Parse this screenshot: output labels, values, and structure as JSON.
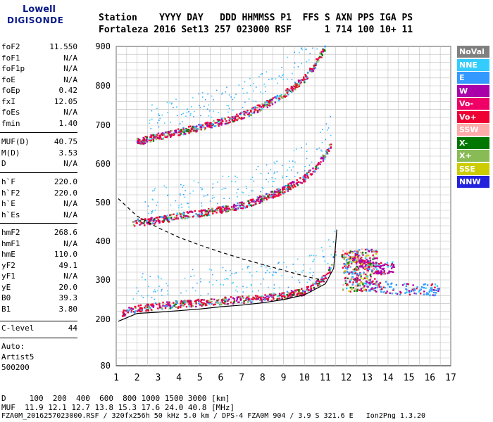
{
  "logo": {
    "line1": "Lowell",
    "line2": "DIGISONDE"
  },
  "header": {
    "row1": "Station    YYYY DAY   DDD HHMMSS P1  FFS S AXN PPS IGA PS",
    "row2": "Fortaleza 2016 Set13 257 023000 RSF      1 714 100 10+ 11"
  },
  "params_group1": [
    {
      "name": "foF2",
      "value": "11.550"
    },
    {
      "name": "foF1",
      "value": "N/A"
    },
    {
      "name": "foF1p",
      "value": "N/A"
    },
    {
      "name": "foE",
      "value": "N/A"
    },
    {
      "name": "foEp",
      "value": "0.42"
    },
    {
      "name": "fxI",
      "value": "12.05"
    },
    {
      "name": "foEs",
      "value": "N/A"
    },
    {
      "name": "fmin",
      "value": "1.40"
    }
  ],
  "params_group2": [
    {
      "name": "MUF(D)",
      "value": "40.75"
    },
    {
      "name": "M(D)",
      "value": "3.53"
    },
    {
      "name": "D",
      "value": "N/A"
    }
  ],
  "params_group3": [
    {
      "name": "h`F",
      "value": "220.0"
    },
    {
      "name": "h`F2",
      "value": "220.0"
    },
    {
      "name": "h`E",
      "value": "N/A"
    },
    {
      "name": "h`Es",
      "value": "N/A"
    }
  ],
  "params_group4": [
    {
      "name": "hmF2",
      "value": "268.6"
    },
    {
      "name": "hmF1",
      "value": "N/A"
    },
    {
      "name": "hmE",
      "value": "110.0"
    },
    {
      "name": "yF2",
      "value": "49.1"
    },
    {
      "name": "yF1",
      "value": "N/A"
    },
    {
      "name": "yE",
      "value": "20.0"
    },
    {
      "name": "B0",
      "value": "39.3"
    },
    {
      "name": "B1",
      "value": "3.80"
    }
  ],
  "clevel": {
    "name": "C-level",
    "value": "44"
  },
  "auto": {
    "line1": "Auto:",
    "line2": "Artist5",
    "line3": "500200"
  },
  "legend": [
    {
      "label": "NoVal",
      "color": "#808080"
    },
    {
      "label": "NNE",
      "color": "#33ccff"
    },
    {
      "label": "E",
      "color": "#3399ff"
    },
    {
      "label": "W",
      "color": "#aa00aa"
    },
    {
      "label": "Vo-",
      "color": "#ee0066"
    },
    {
      "label": "Vo+",
      "color": "#ee0033"
    },
    {
      "label": "SSW",
      "color": "#ffaaaa"
    },
    {
      "label": "X-",
      "color": "#007700"
    },
    {
      "label": "X+",
      "color": "#88bb55"
    },
    {
      "label": "SSE",
      "color": "#cccc00"
    },
    {
      "label": "NNW",
      "color": "#2222dd"
    }
  ],
  "axes": {
    "y_ticks": [
      "900",
      "800",
      "700",
      "600",
      "500",
      "400",
      "300",
      "200",
      "80"
    ],
    "x_ticks": [
      "1",
      "2",
      "3",
      "4",
      "5",
      "6",
      "7",
      "8",
      "9",
      "10",
      "11",
      "12",
      "13",
      "14",
      "15",
      "16",
      "17"
    ]
  },
  "footer": {
    "row1": "D     100  200  400  600  800 1000 1500 3000 [km]",
    "row2": "MUF  11.9 12.1 12.7 13.8 15.3 17.6 24.0 40.8 [MHz]",
    "row3": "FZA0M_2016257023000.RSF / 320fx256h 50 kHz 5.0 km / DPS-4 FZA0M 904 / 3.9 S 321.6 E   Ion2Png 1.3.20"
  },
  "chart_data": {
    "type": "scatter",
    "title": "",
    "xlabel": "",
    "ylabel": "",
    "xlim": [
      1,
      17
    ],
    "ylim": [
      80,
      900
    ],
    "x_ticks": [
      1,
      2,
      3,
      4,
      5,
      6,
      7,
      8,
      9,
      10,
      11,
      12,
      13,
      14,
      15,
      16,
      17
    ],
    "y_ticks": [
      80,
      200,
      300,
      400,
      500,
      600,
      700,
      800,
      900
    ],
    "grid": true,
    "legend_position": "right",
    "series": [
      {
        "name": "Vo+",
        "color": "#ee0033",
        "points": [
          [
            1.3,
            215
          ],
          [
            2,
            225
          ],
          [
            3,
            232
          ],
          [
            4,
            236
          ],
          [
            5,
            240
          ],
          [
            6,
            244
          ],
          [
            7,
            248
          ],
          [
            8,
            252
          ],
          [
            9,
            258
          ],
          [
            10,
            268
          ],
          [
            10.5,
            285
          ],
          [
            11,
            305
          ],
          [
            11.3,
            330
          ],
          [
            11.5,
            370
          ]
        ]
      },
      {
        "name": "Vo+",
        "color": "#ee0033",
        "points": [
          [
            1.8,
            445
          ],
          [
            3,
            452
          ],
          [
            4,
            462
          ],
          [
            5,
            470
          ],
          [
            6,
            478
          ],
          [
            7,
            490
          ],
          [
            8,
            508
          ],
          [
            9,
            530
          ],
          [
            10,
            560
          ],
          [
            10.5,
            585
          ],
          [
            11,
            620
          ],
          [
            11.3,
            650
          ]
        ]
      },
      {
        "name": "Vo+",
        "color": "#ee0033",
        "points": [
          [
            2,
            655
          ],
          [
            3,
            668
          ],
          [
            4,
            680
          ],
          [
            5,
            692
          ],
          [
            6,
            706
          ],
          [
            7,
            722
          ],
          [
            8,
            745
          ],
          [
            9,
            775
          ],
          [
            10,
            815
          ],
          [
            10.5,
            850
          ],
          [
            11,
            895
          ]
        ]
      },
      {
        "name": "E",
        "color": "#3399ff",
        "points": [
          [
            12,
            330
          ],
          [
            12.5,
            300
          ],
          [
            13,
            285
          ],
          [
            13.5,
            280
          ],
          [
            14,
            278
          ],
          [
            14.5,
            275
          ],
          [
            15,
            273
          ],
          [
            16.5,
            272
          ]
        ]
      },
      {
        "name": "W",
        "color": "#aa00aa",
        "points": [
          [
            12.3,
            360
          ],
          [
            12.8,
            340
          ],
          [
            13.3,
            330
          ],
          [
            13.8,
            325
          ],
          [
            14.3,
            330
          ]
        ]
      }
    ],
    "profile_line": {
      "name": "",
      "points": [
        [
          1.1,
          195
        ],
        [
          2,
          215
        ],
        [
          3,
          218
        ],
        [
          4,
          222
        ],
        [
          5,
          226
        ],
        [
          6,
          232
        ],
        [
          7,
          236
        ],
        [
          8,
          242
        ],
        [
          9,
          250
        ],
        [
          10,
          262
        ],
        [
          11,
          290
        ],
        [
          11.4,
          330
        ],
        [
          11.55,
          430
        ]
      ]
    },
    "muf_dashed": {
      "name": "",
      "points": [
        [
          1.1,
          510
        ],
        [
          2,
          465
        ],
        [
          3,
          435
        ],
        [
          4,
          410
        ],
        [
          5,
          390
        ],
        [
          6,
          372
        ],
        [
          7,
          355
        ],
        [
          8,
          340
        ],
        [
          9,
          325
        ],
        [
          10,
          310
        ],
        [
          10.8,
          300
        ]
      ]
    }
  }
}
